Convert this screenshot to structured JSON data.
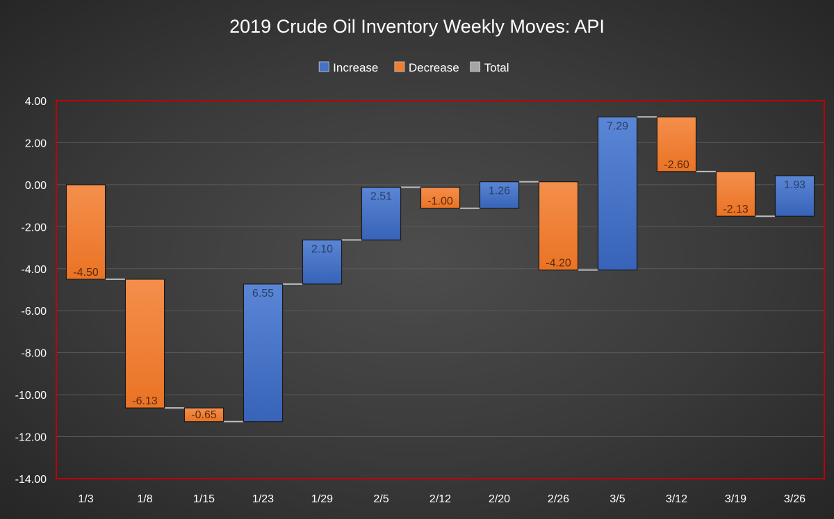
{
  "chart_data": {
    "type": "bar",
    "subtype": "waterfall",
    "title": "2019 Crude Oil Inventory Weekly Moves: API",
    "xlabel": "",
    "ylabel": "",
    "ylim": [
      -14,
      4
    ],
    "yticks": [
      "4.00",
      "2.00",
      "0.00",
      "-2.00",
      "-4.00",
      "-6.00",
      "-8.00",
      "-10.00",
      "-12.00",
      "-14.00"
    ],
    "ytick_values": [
      4,
      2,
      0,
      -2,
      -4,
      -6,
      -8,
      -10,
      -12,
      -14
    ],
    "categories": [
      "1/3",
      "1/8",
      "1/15",
      "1/23",
      "1/29",
      "2/5",
      "2/12",
      "2/20",
      "2/26",
      "3/5",
      "3/12",
      "3/19",
      "3/26"
    ],
    "values": [
      -4.5,
      -6.13,
      -0.65,
      6.55,
      2.1,
      2.51,
      -1.0,
      1.26,
      -4.2,
      7.29,
      -2.6,
      -2.13,
      1.93
    ],
    "value_labels": [
      "-4.50",
      "-6.13",
      "-0.65",
      "6.55",
      "2.10",
      "2.51",
      "-1.00",
      "1.26",
      "-4.20",
      "7.29",
      "-2.60",
      "-2.13",
      "1.93"
    ],
    "legend": {
      "position": "top",
      "items": [
        {
          "label": "Increase",
          "color": "#4472c4"
        },
        {
          "label": "Decrease",
          "color": "#ed7d31"
        },
        {
          "label": "Total",
          "color": "#a5a5a5"
        }
      ]
    },
    "grid": true,
    "colors": {
      "increase": "#4472c4",
      "decrease": "#ed7d31",
      "connector": "#bfbfbf",
      "plot_border": "#c00000",
      "text": "#ffffff",
      "gridline": "#5a5a5a"
    }
  }
}
